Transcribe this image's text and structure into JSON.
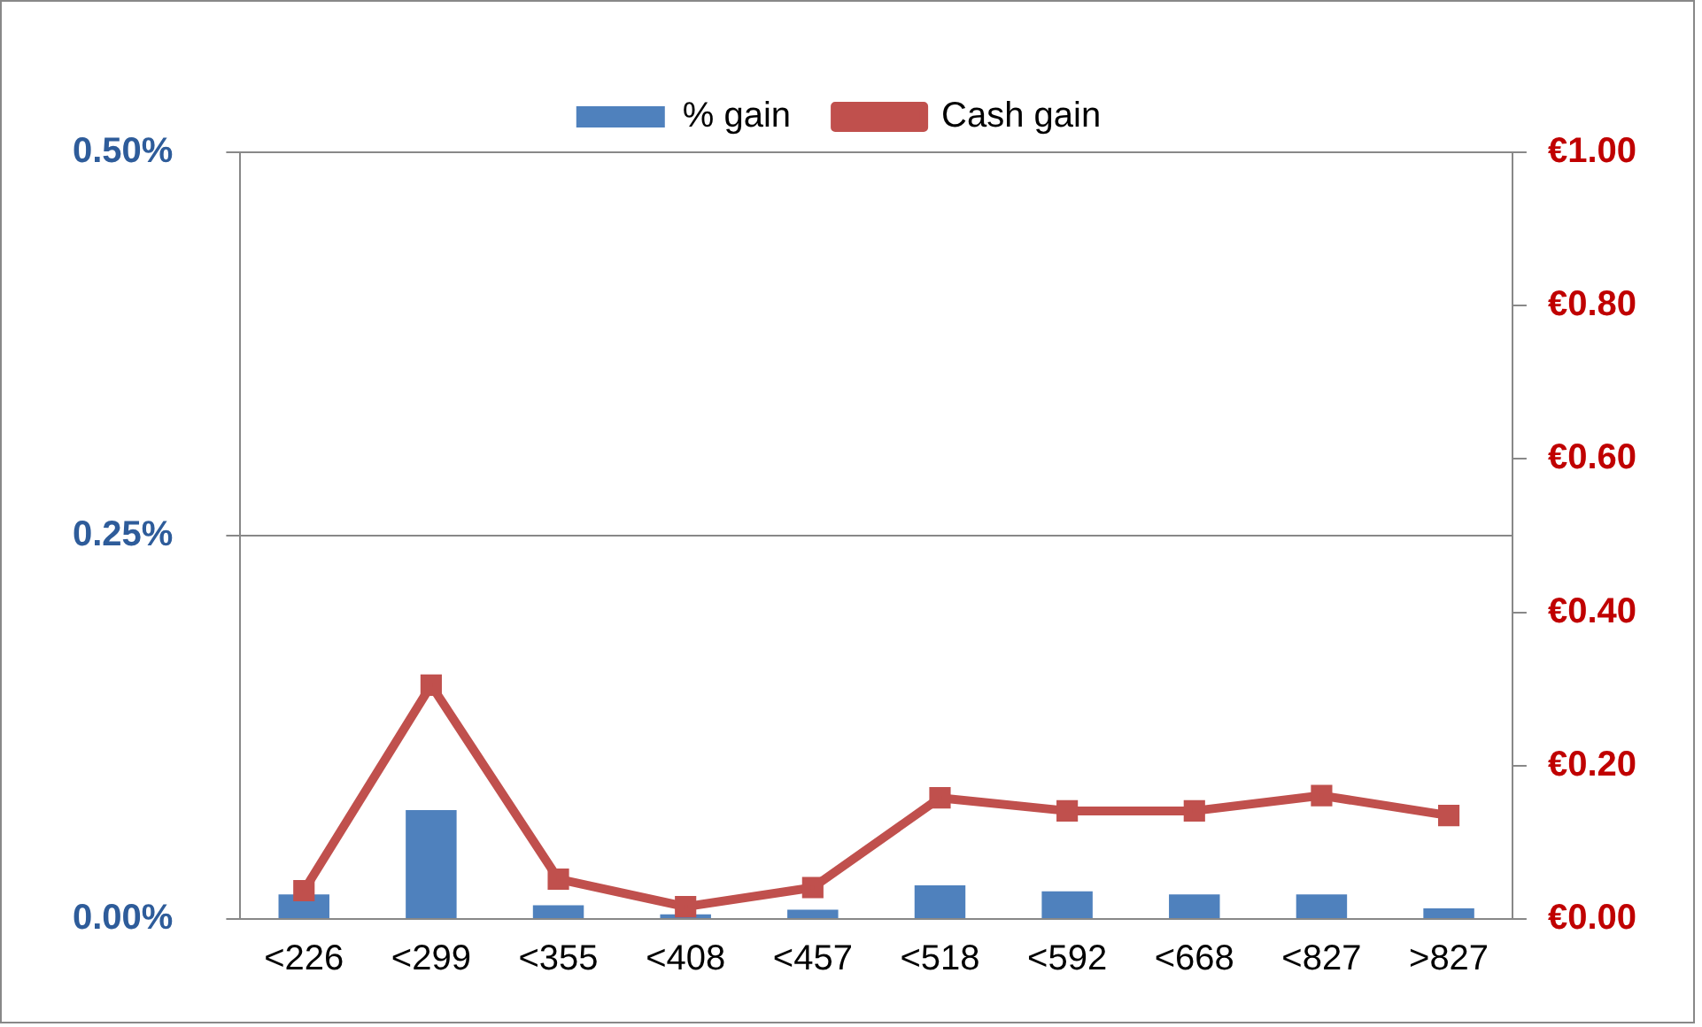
{
  "chart_data": {
    "type": "bar",
    "categories": [
      "<226",
      "<299",
      "<355",
      "<408",
      "<457",
      "<518",
      "<592",
      "<668",
      "<827",
      ">827"
    ],
    "series": [
      {
        "name": "% gain",
        "color": "#4f81bd",
        "values": [
          0.016,
          0.071,
          0.009,
          0.003,
          0.006,
          0.022,
          0.018,
          0.016,
          0.016,
          0.007
        ]
      },
      {
        "name": "Cash gain",
        "type": "line",
        "axis": "y2",
        "color": "#c0504d",
        "marker": "square",
        "values": [
          0.037,
          0.305,
          0.052,
          0.016,
          0.041,
          0.158,
          0.141,
          0.141,
          0.161,
          0.135
        ]
      }
    ],
    "ylim": [
      0,
      0.5
    ],
    "yticks": [
      {
        "value": 0,
        "label": "0.00%"
      },
      {
        "value": 0.25,
        "label": "0.25%"
      },
      {
        "value": 0.5,
        "label": "0.50%"
      }
    ],
    "y2lim": [
      0,
      1
    ],
    "y2ticks": [
      {
        "value": 0,
        "label": "€0.00"
      },
      {
        "value": 0.2,
        "label": "€0.20"
      },
      {
        "value": 0.4,
        "label": "€0.40"
      },
      {
        "value": 0.6,
        "label": "€0.60"
      },
      {
        "value": 0.8,
        "label": "€0.80"
      },
      {
        "value": 1,
        "label": "€1.00"
      }
    ],
    "grid": "y",
    "legend": "top"
  }
}
